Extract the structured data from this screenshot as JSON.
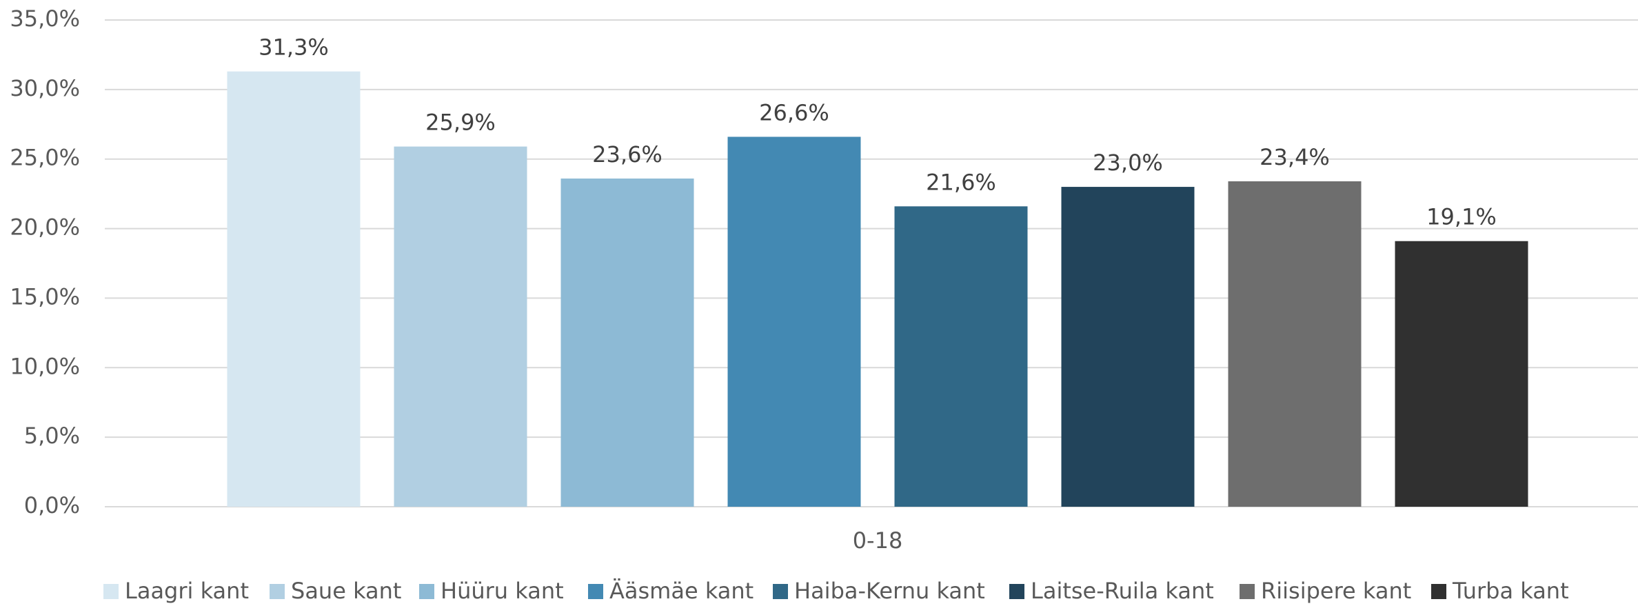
{
  "chart_data": {
    "type": "bar",
    "categories": [
      "0-18"
    ],
    "series": [
      {
        "name": "Laagri kant",
        "color": "#d6e7f1",
        "values": [
          31.3
        ],
        "value_labels": [
          "31,3%"
        ]
      },
      {
        "name": "Saue kant",
        "color": "#b1cfe2",
        "values": [
          25.9
        ],
        "value_labels": [
          "25,9%"
        ]
      },
      {
        "name": "Hüüru kant",
        "color": "#8dbad5",
        "values": [
          23.6
        ],
        "value_labels": [
          "23,6%"
        ]
      },
      {
        "name": "Ääsmäe kant",
        "color": "#4389b3",
        "values": [
          26.6
        ],
        "value_labels": [
          "26,6%"
        ]
      },
      {
        "name": "Haiba-Kernu kant",
        "color": "#306887",
        "values": [
          21.6
        ],
        "value_labels": [
          "21,6%"
        ]
      },
      {
        "name": "Laitse-Ruila kant",
        "color": "#22445b",
        "values": [
          23.0
        ],
        "value_labels": [
          "23,0%"
        ]
      },
      {
        "name": "Riisipere kant",
        "color": "#6e6e6e",
        "values": [
          23.4
        ],
        "value_labels": [
          "23,4%"
        ]
      },
      {
        "name": "Turba kant",
        "color": "#303030",
        "values": [
          19.1
        ],
        "value_labels": [
          "19,1%"
        ]
      }
    ],
    "ylim": [
      0,
      35
    ],
    "yticks": [
      {
        "value": 0,
        "label": "0,0%"
      },
      {
        "value": 5,
        "label": "5,0%"
      },
      {
        "value": 10,
        "label": "10,0%"
      },
      {
        "value": 15,
        "label": "15,0%"
      },
      {
        "value": 20,
        "label": "20,0%"
      },
      {
        "value": 25,
        "label": "25,0%"
      },
      {
        "value": 30,
        "label": "30,0%"
      },
      {
        "value": 35,
        "label": "35,0%"
      }
    ],
    "grid": true,
    "legend": "bottom"
  }
}
